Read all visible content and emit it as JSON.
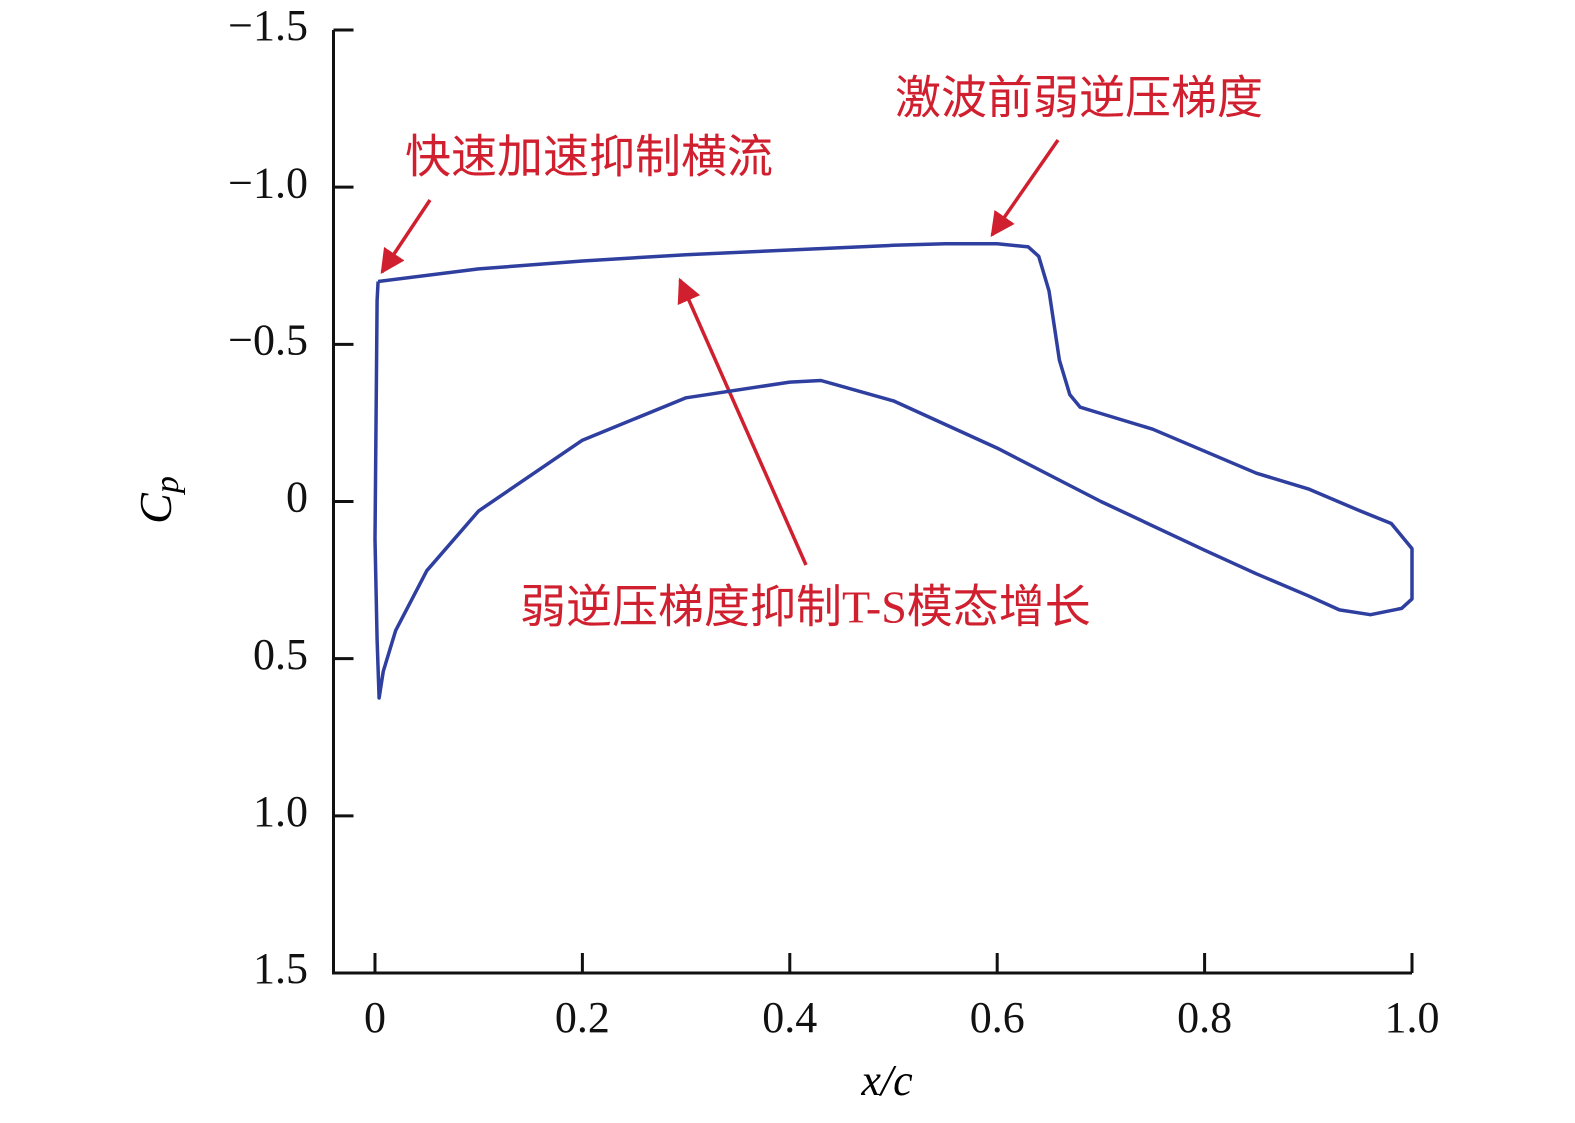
{
  "chart_data": {
    "type": "line",
    "xlabel": "x/c",
    "ylabel": [
      "C",
      "p"
    ],
    "xlim": [
      -0.04,
      1.0
    ],
    "ylim": [
      -1.5,
      1.5
    ],
    "y_inverted": true,
    "xticks": [
      0,
      0.2,
      0.4,
      0.6,
      0.8,
      {
        "value": 1,
        "label": "1.0"
      }
    ],
    "yticks": [
      {
        "value": -1.5,
        "label": "−1.5"
      },
      {
        "value": -1,
        "label": "−1.0"
      },
      {
        "value": -0.5,
        "label": "−0.5"
      },
      0,
      0.5,
      {
        "value": 1,
        "label": "1.0"
      },
      1.5
    ],
    "grid": false,
    "series": [
      {
        "color": "#2f3f9f",
        "x": [
          0.003,
          0.1,
          0.2,
          0.3,
          0.4,
          0.5,
          0.55,
          0.6,
          0.63,
          0.64,
          0.65,
          0.66,
          0.67,
          0.68,
          0.7,
          0.75,
          0.8,
          0.85,
          0.9,
          0.95,
          0.98,
          1.0,
          1.0,
          0.99,
          0.96,
          0.93,
          0.9,
          0.85,
          0.8,
          0.7,
          0.6,
          0.5,
          0.43,
          0.4,
          0.3,
          0.2,
          0.1,
          0.05,
          0.02,
          0.008,
          0.004,
          0.002,
          0.0,
          0.002,
          0.003
        ],
        "values": [
          -0.7,
          -0.74,
          -0.765,
          -0.785,
          -0.8,
          -0.815,
          -0.82,
          -0.82,
          -0.81,
          -0.78,
          -0.67,
          -0.45,
          -0.34,
          -0.3,
          -0.28,
          -0.23,
          -0.16,
          -0.09,
          -0.04,
          0.03,
          0.07,
          0.15,
          0.31,
          0.34,
          0.36,
          0.345,
          0.3,
          0.23,
          0.155,
          0.0,
          -0.17,
          -0.32,
          -0.385,
          -0.38,
          -0.33,
          -0.195,
          0.03,
          0.22,
          0.41,
          0.54,
          0.625,
          0.44,
          0.12,
          -0.64,
          -0.7
        ]
      }
    ],
    "annotations": [
      "激波前弱逆压梯度",
      "快速加速抑制横流",
      "弱逆压梯度抑制T-S模态增长"
    ],
    "annotation_color": "#d0202f"
  }
}
